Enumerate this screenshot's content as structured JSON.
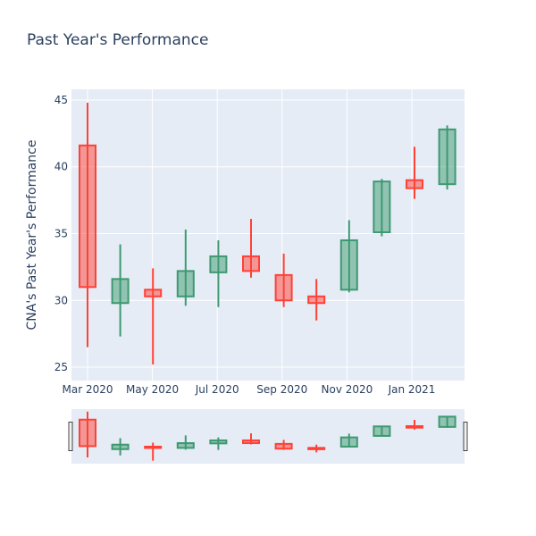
{
  "chart_data": {
    "type": "candlestick",
    "title": "Past Year's Performance",
    "ylabel": "CNA's Past Year's Performance",
    "xlabel": "",
    "ylim": [
      24,
      45.8
    ],
    "yticks": [
      25,
      30,
      35,
      40,
      45
    ],
    "x_ticks": [
      "Mar 2020",
      "May 2020",
      "Jul 2020",
      "Sep 2020",
      "Nov 2020",
      "Jan 2021"
    ],
    "grid": true,
    "rangeslider": true,
    "increasing_color": "#3d9970",
    "decreasing_color": "#ff4136",
    "plot_bg": "#e5ecf6",
    "series": [
      {
        "period": 0,
        "open": 41.6,
        "high": 44.8,
        "low": 26.5,
        "close": 31.0
      },
      {
        "period": 1,
        "open": 29.8,
        "high": 34.2,
        "low": 27.3,
        "close": 31.6
      },
      {
        "period": 2,
        "open": 30.8,
        "high": 32.4,
        "low": 25.2,
        "close": 30.3
      },
      {
        "period": 3,
        "open": 30.3,
        "high": 35.3,
        "low": 29.6,
        "close": 32.2
      },
      {
        "period": 4,
        "open": 32.1,
        "high": 34.5,
        "low": 29.5,
        "close": 33.3
      },
      {
        "period": 5,
        "open": 33.3,
        "high": 36.1,
        "low": 31.7,
        "close": 32.2
      },
      {
        "period": 6,
        "open": 31.9,
        "high": 33.5,
        "low": 29.5,
        "close": 30.0
      },
      {
        "period": 7,
        "open": 30.3,
        "high": 31.6,
        "low": 28.5,
        "close": 29.8
      },
      {
        "period": 8,
        "open": 30.8,
        "high": 36.0,
        "low": 30.6,
        "close": 34.5
      },
      {
        "period": 9,
        "open": 35.1,
        "high": 39.1,
        "low": 34.8,
        "close": 38.9
      },
      {
        "period": 10,
        "open": 39.0,
        "high": 41.5,
        "low": 37.6,
        "close": 38.4
      },
      {
        "period": 11,
        "open": 38.7,
        "high": 43.1,
        "low": 38.3,
        "close": 42.8
      }
    ]
  }
}
